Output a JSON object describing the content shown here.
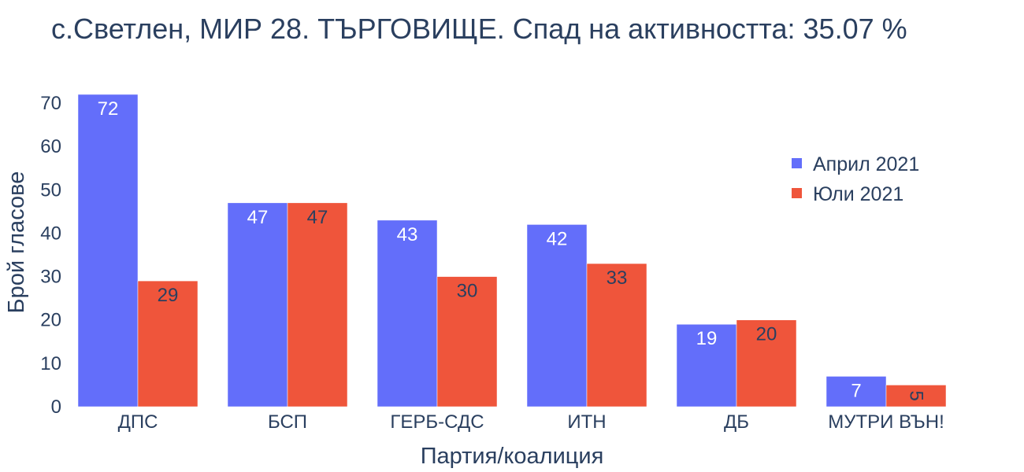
{
  "chart_data": {
    "type": "bar",
    "title": "с.Светлен, МИР 28. ТЪРГОВИЩЕ. Спад на активността: 35.07 %",
    "xlabel": "Партия/коалиция",
    "ylabel": "Брой гласове",
    "categories": [
      "ДПС",
      "БСП",
      "ГЕРБ-СДС",
      "ИТН",
      "ДБ",
      "МУТРИ ВЪН!"
    ],
    "series": [
      {
        "name": "Април 2021",
        "color": "#636efa",
        "label_color": "#ffffff",
        "values": [
          72,
          47,
          43,
          42,
          19,
          7
        ]
      },
      {
        "name": "Юли 2021",
        "color": "#ef553b",
        "label_color": "#2a3f5f",
        "values": [
          29,
          47,
          30,
          33,
          20,
          5
        ]
      }
    ],
    "ylim": [
      0,
      72
    ],
    "yticks": [
      0,
      10,
      20,
      30,
      40,
      50,
      60,
      70
    ],
    "grid": false,
    "legend_position": "top-right",
    "text_color": "#2a3f5f"
  }
}
